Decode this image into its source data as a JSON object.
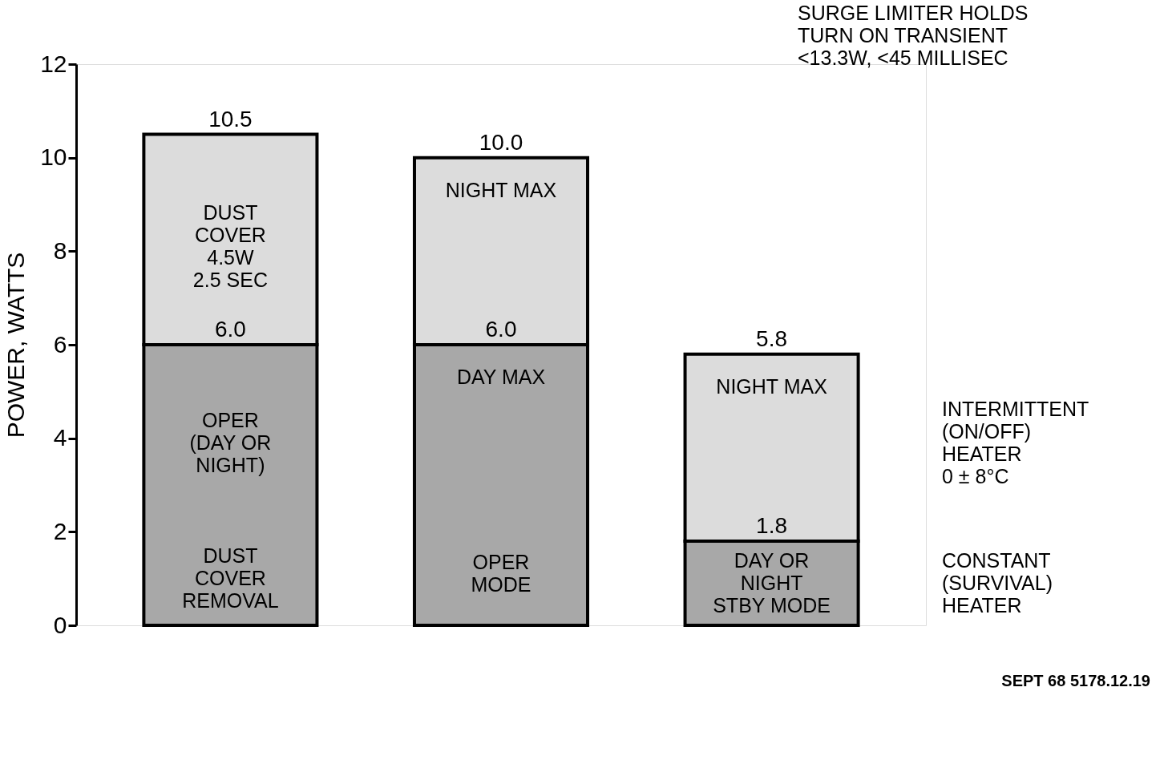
{
  "chart_data": {
    "type": "bar",
    "stacked": true,
    "ylabel": "POWER, WATTS",
    "categories": [
      null,
      null,
      null
    ],
    "series": [
      {
        "color": "#a8a8a8",
        "values": [
          6.0,
          6.0,
          1.8
        ]
      },
      {
        "color": "#dcdcdc",
        "values": [
          4.5,
          4.0,
          4.0
        ]
      }
    ],
    "ylim": [
      0,
      12
    ],
    "yticks": [
      0,
      2,
      4,
      6,
      8,
      10,
      12
    ],
    "grid": false,
    "legend": false,
    "tick_labels": "y",
    "annotations": [
      "DUST\nCOVER\n4.5W\n2.5 SEC",
      "OPER\n(DAY OR\nNIGHT)",
      "DUST\nCOVER\nREMOVAL",
      "NIGHT MAX",
      "DAY MAX",
      "OPER\nMODE",
      "NIGHT MAX",
      "DAY OR\nNIGHT\nSTBY MODE",
      "INTERMITTENT\n(ON/OFF)\nHEATER\n0 ± 8°C",
      "CONSTANT\n(SURVIVAL)\nHEATER",
      "SURGE LIMITER HOLDS\nTURN ON TRANSIENT\n<13.3W, <45 MILLISEC",
      "SEPT 68 5178.12.19",
      {
        "text": "10.5",
        "y": 10.5
      },
      {
        "text": "6.0",
        "y": 6.0
      },
      {
        "text": "10.0",
        "y": 10.0
      },
      {
        "text": "6.0",
        "y": 6.0
      },
      {
        "text": "5.8",
        "y": 5.8
      },
      {
        "text": "1.8",
        "y": 1.8
      }
    ]
  }
}
